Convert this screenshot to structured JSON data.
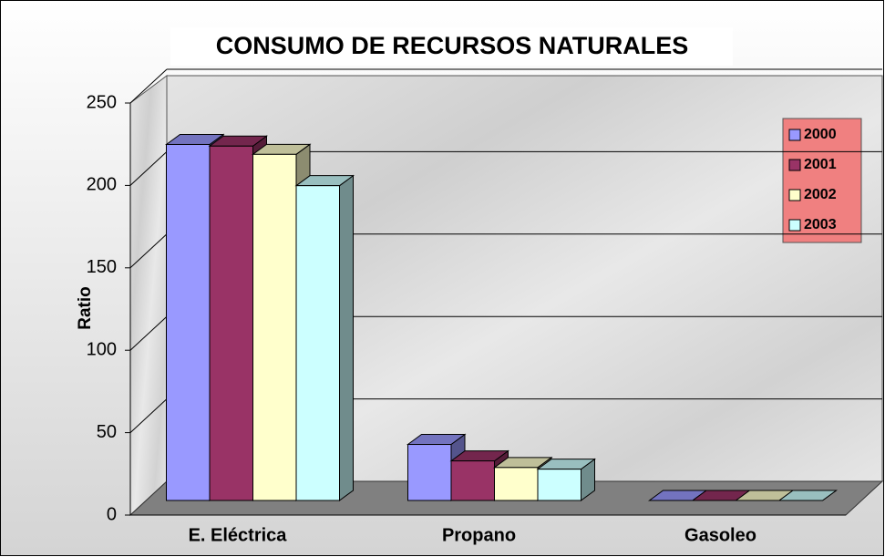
{
  "chart_data": {
    "type": "bar3d",
    "title": "CONSUMO DE RECURSOS NATURALES",
    "y_label": "Ratio",
    "categories": [
      "E. Eléctrica",
      "Propano",
      "Gasoleo"
    ],
    "series": [
      {
        "name": "2000",
        "color": "#9999ff",
        "values": [
          216,
          34,
          0
        ]
      },
      {
        "name": "2001",
        "color": "#993366",
        "values": [
          215,
          24,
          0
        ]
      },
      {
        "name": "2002",
        "color": "#ffffcc",
        "values": [
          210,
          20,
          0
        ]
      },
      {
        "name": "2003",
        "color": "#ccffff",
        "values": [
          191,
          19,
          0
        ]
      }
    ],
    "ylim": [
      0,
      250
    ],
    "yticks": [
      0,
      50,
      100,
      150,
      200,
      250
    ],
    "grid": true,
    "legend": "right"
  }
}
